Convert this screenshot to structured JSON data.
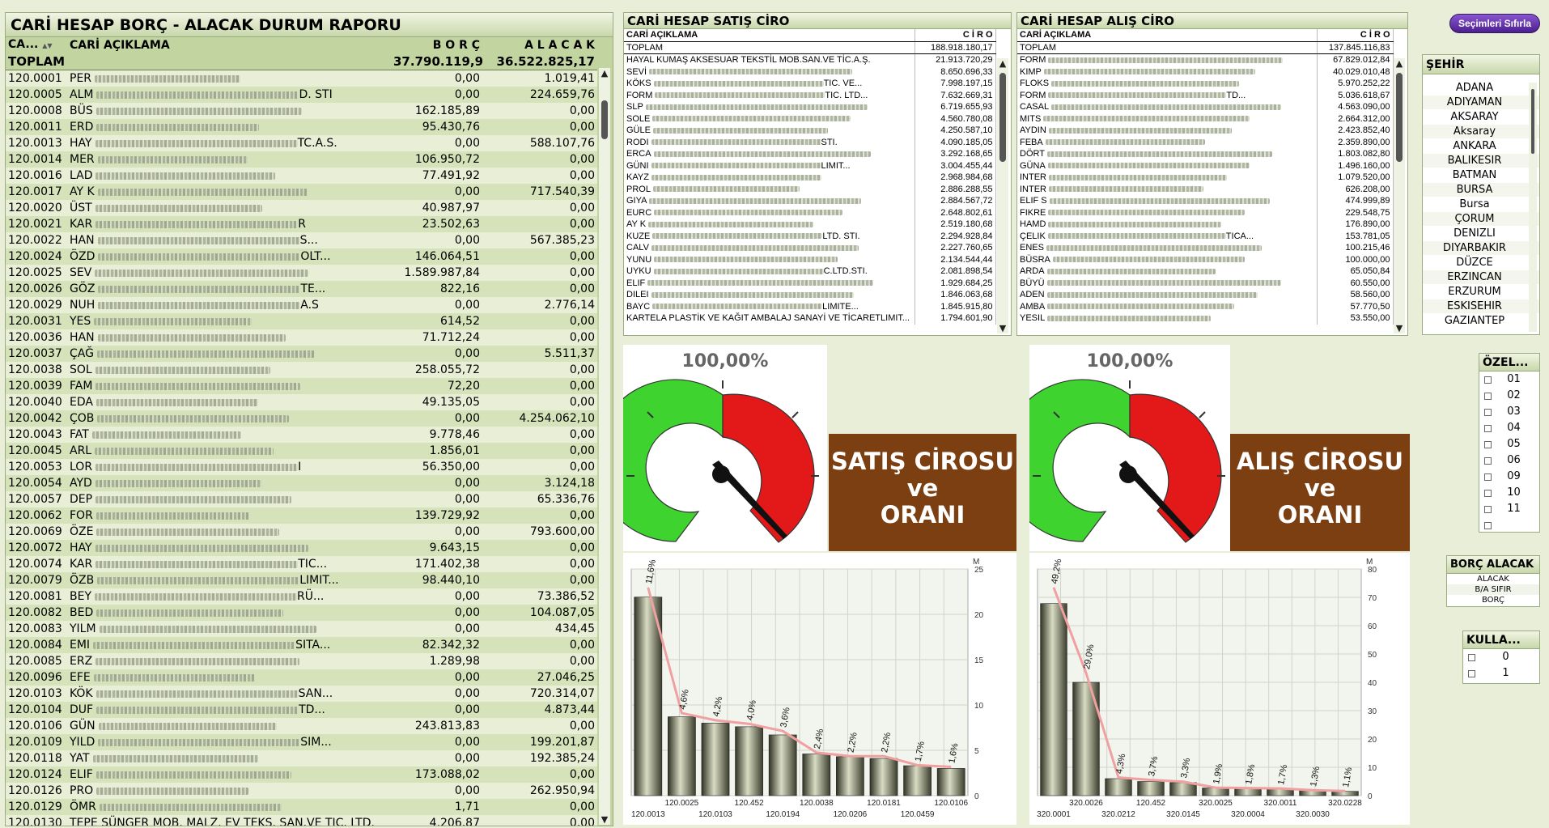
{
  "borc_report": {
    "title": "CARİ HESAP BORÇ - ALACAK DURUM RAPORU",
    "headers": {
      "code": "CA...",
      "sort_arrow": "▲▼",
      "desc": "CARİ AÇIKLAMA",
      "borc": "B O R Ç",
      "alacak": "A L A C A K"
    },
    "total": {
      "label": "TOPLAM",
      "borc": "37.790.119,94",
      "alacak": "36.522.825,17"
    },
    "rows": [
      {
        "code": "120.0001",
        "name": "PER",
        "tail": "",
        "borc": "0,00",
        "alacak": "1.019,41"
      },
      {
        "code": "120.0005",
        "name": "ALM",
        "tail": "D. STI",
        "borc": "0,00",
        "alacak": "224.659,76"
      },
      {
        "code": "120.0008",
        "name": "BÜS",
        "tail": "",
        "borc": "162.185,89",
        "alacak": "0,00"
      },
      {
        "code": "120.0011",
        "name": "ERD",
        "tail": "",
        "borc": "95.430,76",
        "alacak": "0,00"
      },
      {
        "code": "120.0013",
        "name": "HAY",
        "tail": "TC.A.S.",
        "borc": "0,00",
        "alacak": "588.107,76"
      },
      {
        "code": "120.0014",
        "name": "MER",
        "tail": "",
        "borc": "106.950,72",
        "alacak": "0,00"
      },
      {
        "code": "120.0016",
        "name": "LAD",
        "tail": "",
        "borc": "77.491,92",
        "alacak": "0,00"
      },
      {
        "code": "120.0017",
        "name": "AY K",
        "tail": "",
        "borc": "0,00",
        "alacak": "717.540,39"
      },
      {
        "code": "120.0020",
        "name": "ÜST",
        "tail": "",
        "borc": "40.987,97",
        "alacak": "0,00"
      },
      {
        "code": "120.0021",
        "name": "KAR",
        "tail": "R",
        "borc": "23.502,63",
        "alacak": "0,00"
      },
      {
        "code": "120.0022",
        "name": "HAN",
        "tail": "S...",
        "borc": "0,00",
        "alacak": "567.385,23"
      },
      {
        "code": "120.0024",
        "name": "ÖZD",
        "tail": "OLT...",
        "borc": "146.064,51",
        "alacak": "0,00"
      },
      {
        "code": "120.0025",
        "name": "SEV",
        "tail": "",
        "borc": "1.589.987,84",
        "alacak": "0,00"
      },
      {
        "code": "120.0026",
        "name": "GÖZ",
        "tail": "TE...",
        "borc": "822,16",
        "alacak": "0,00"
      },
      {
        "code": "120.0029",
        "name": "NUH",
        "tail": "A.S",
        "borc": "0,00",
        "alacak": "2.776,14"
      },
      {
        "code": "120.0031",
        "name": "YES",
        "tail": "",
        "borc": "614,52",
        "alacak": "0,00"
      },
      {
        "code": "120.0036",
        "name": "HAN",
        "tail": "",
        "borc": "71.712,24",
        "alacak": "0,00"
      },
      {
        "code": "120.0037",
        "name": "ÇAĞ",
        "tail": "",
        "borc": "0,00",
        "alacak": "5.511,37"
      },
      {
        "code": "120.0038",
        "name": "SOL",
        "tail": "",
        "borc": "258.055,72",
        "alacak": "0,00"
      },
      {
        "code": "120.0039",
        "name": "FAM",
        "tail": "",
        "borc": "72,20",
        "alacak": "0,00"
      },
      {
        "code": "120.0040",
        "name": "EDA",
        "tail": "",
        "borc": "49.135,05",
        "alacak": "0,00"
      },
      {
        "code": "120.0042",
        "name": "ÇOB",
        "tail": "",
        "borc": "0,00",
        "alacak": "4.254.062,10"
      },
      {
        "code": "120.0043",
        "name": "FAT",
        "tail": "",
        "borc": "9.778,46",
        "alacak": "0,00"
      },
      {
        "code": "120.0045",
        "name": "ARL",
        "tail": "",
        "borc": "1.856,01",
        "alacak": "0,00"
      },
      {
        "code": "120.0053",
        "name": "LOR",
        "tail": "I",
        "borc": "56.350,00",
        "alacak": "0,00"
      },
      {
        "code": "120.0054",
        "name": "AYD",
        "tail": "",
        "borc": "0,00",
        "alacak": "3.124,18"
      },
      {
        "code": "120.0057",
        "name": "DEP",
        "tail": "",
        "borc": "0,00",
        "alacak": "65.336,76"
      },
      {
        "code": "120.0062",
        "name": "FOR",
        "tail": "",
        "borc": "139.729,92",
        "alacak": "0,00"
      },
      {
        "code": "120.0069",
        "name": "ÖZE",
        "tail": "",
        "borc": "0,00",
        "alacak": "793.600,00"
      },
      {
        "code": "120.0072",
        "name": "HAY",
        "tail": "",
        "borc": "9.643,15",
        "alacak": "0,00"
      },
      {
        "code": "120.0074",
        "name": "KAR",
        "tail": "TIC...",
        "borc": "171.402,38",
        "alacak": "0,00"
      },
      {
        "code": "120.0079",
        "name": "ÖZB",
        "tail": "LIMIT...",
        "borc": "98.440,10",
        "alacak": "0,00"
      },
      {
        "code": "120.0081",
        "name": "BEY",
        "tail": "RÜ...",
        "borc": "0,00",
        "alacak": "73.386,52"
      },
      {
        "code": "120.0082",
        "name": "BED",
        "tail": "",
        "borc": "0,00",
        "alacak": "104.087,05"
      },
      {
        "code": "120.0083",
        "name": "YILM",
        "tail": "",
        "borc": "0,00",
        "alacak": "434,45"
      },
      {
        "code": "120.0084",
        "name": "EMI",
        "tail": "SITA...",
        "borc": "82.342,32",
        "alacak": "0,00"
      },
      {
        "code": "120.0085",
        "name": "ERZ",
        "tail": "",
        "borc": "1.289,98",
        "alacak": "0,00"
      },
      {
        "code": "120.0096",
        "name": "EFE",
        "tail": "",
        "borc": "0,00",
        "alacak": "27.046,25"
      },
      {
        "code": "120.0103",
        "name": "KÖK",
        "tail": "SAN...",
        "borc": "0,00",
        "alacak": "720.314,07"
      },
      {
        "code": "120.0104",
        "name": "DUF",
        "tail": "TD...",
        "borc": "0,00",
        "alacak": "4.873,44"
      },
      {
        "code": "120.0106",
        "name": "GÜN",
        "tail": "",
        "borc": "243.813,83",
        "alacak": "0,00"
      },
      {
        "code": "120.0109",
        "name": "YILD",
        "tail": "SIM...",
        "borc": "0,00",
        "alacak": "199.201,87"
      },
      {
        "code": "120.0118",
        "name": "YAT",
        "tail": "",
        "borc": "0,00",
        "alacak": "192.385,24"
      },
      {
        "code": "120.0124",
        "name": "ELIF",
        "tail": "",
        "borc": "173.088,02",
        "alacak": "0,00"
      },
      {
        "code": "120.0126",
        "name": "PRO",
        "tail": "",
        "borc": "0,00",
        "alacak": "262.950,94"
      },
      {
        "code": "120.0129",
        "name": "ÖMR",
        "tail": "",
        "borc": "1,71",
        "alacak": "0,00"
      },
      {
        "code": "120.0130",
        "name": "TEPE SÜNGER MOB. MALZ. EV TEKS. SAN.VE TIC. LTD.",
        "tail": "",
        "borc": "4.206,87",
        "alacak": "0,00"
      }
    ]
  },
  "satis_ciro": {
    "title": "CARİ HESAP SATIŞ CİRO",
    "col_desc": "CARİ AÇIKLAMA",
    "col_ciro": "C İ R O",
    "total": {
      "label": "TOPLAM",
      "value": "188.918.180,17"
    },
    "rows": [
      {
        "name": "HAYAL KUMAŞ AKSESUAR TEKSTİL MOB.SAN.VE TİC.A.Ş.",
        "tail": "",
        "value": "21.913.720,29"
      },
      {
        "name": "SEVİ",
        "tail": "",
        "value": "8.650.696,33"
      },
      {
        "name": "KÖKS",
        "tail": "TIC. VE...",
        "value": "7.998.197,15"
      },
      {
        "name": "FORM",
        "tail": "TIC. LTD...",
        "value": "7.632.669,31"
      },
      {
        "name": "SLP",
        "tail": "",
        "value": "6.719.655,93"
      },
      {
        "name": "SOLE",
        "tail": "",
        "value": "4.560.780,08"
      },
      {
        "name": "GÜLE",
        "tail": "",
        "value": "4.250.587,10"
      },
      {
        "name": "RODI",
        "tail": "STI.",
        "value": "4.090.185,05"
      },
      {
        "name": "ERCA",
        "tail": "",
        "value": "3.292.168,65"
      },
      {
        "name": "GÜNI",
        "tail": "LIMIT...",
        "value": "3.004.455,44"
      },
      {
        "name": "KAYZ",
        "tail": "",
        "value": "2.968.984,68"
      },
      {
        "name": "PROL",
        "tail": "",
        "value": "2.886.288,55"
      },
      {
        "name": "GIYA",
        "tail": "",
        "value": "2.884.567,72"
      },
      {
        "name": "EURC",
        "tail": "",
        "value": "2.648.802,61"
      },
      {
        "name": "AY K",
        "tail": "",
        "value": "2.519.180,68"
      },
      {
        "name": "KUZE",
        "tail": "LTD. STI.",
        "value": "2.294.928,84"
      },
      {
        "name": "CALV",
        "tail": "",
        "value": "2.227.760,65"
      },
      {
        "name": "YUNU",
        "tail": "",
        "value": "2.134.544,44"
      },
      {
        "name": "UYKU",
        "tail": "C.LTD.STI.",
        "value": "2.081.898,54"
      },
      {
        "name": "ELIF",
        "tail": "",
        "value": "1.929.684,25"
      },
      {
        "name": "DILEI",
        "tail": "",
        "value": "1.846.063,68"
      },
      {
        "name": "BAYC",
        "tail": "LIMITE...",
        "value": "1.845.915,80"
      },
      {
        "name": "KARTELA PLASTİK VE KAĞIT AMBALAJ SANAYİ VE TİCARET",
        "tail": "LIMIT...",
        "value": "1.794.601,90"
      }
    ]
  },
  "alis_ciro": {
    "title": "CARİ HESAP ALIŞ CİRO",
    "col_desc": "CARİ AÇIKLAMA",
    "col_ciro": "C İ R O",
    "total": {
      "label": "TOPLAM",
      "value": "137.845.116,83"
    },
    "rows": [
      {
        "name": "FORM",
        "tail": "",
        "value": "67.829.012,84"
      },
      {
        "name": "KIMP",
        "tail": "",
        "value": "40.029.010,48"
      },
      {
        "name": "FLOKS",
        "tail": "",
        "value": "5.970.252,22"
      },
      {
        "name": "FORM",
        "tail": "TD...",
        "value": "5.036.618,67"
      },
      {
        "name": "CASAL",
        "tail": "",
        "value": "4.563.090,00"
      },
      {
        "name": "MITS",
        "tail": "",
        "value": "2.664.312,00"
      },
      {
        "name": "AYDIN",
        "tail": "",
        "value": "2.423.852,40"
      },
      {
        "name": "FEBA",
        "tail": "",
        "value": "2.359.890,00"
      },
      {
        "name": "DÖRT",
        "tail": "",
        "value": "1.803.082,80"
      },
      {
        "name": "GÜNA",
        "tail": "",
        "value": "1.496.160,00"
      },
      {
        "name": "INTER",
        "tail": "",
        "value": "1.079.520,00"
      },
      {
        "name": "INTER",
        "tail": "",
        "value": "626.208,00"
      },
      {
        "name": "ELIF S",
        "tail": "",
        "value": "474.999,89"
      },
      {
        "name": "FIKRE",
        "tail": "",
        "value": "229.548,75"
      },
      {
        "name": "HAMD",
        "tail": "",
        "value": "176.890,00"
      },
      {
        "name": "ÇELIK",
        "tail": "TICA...",
        "value": "153.781,05"
      },
      {
        "name": "ENES",
        "tail": "",
        "value": "100.215,46"
      },
      {
        "name": "BÜSRA",
        "tail": "",
        "value": "100.000,00"
      },
      {
        "name": "ARDA",
        "tail": "",
        "value": "65.050,84"
      },
      {
        "name": "BÜYÜ",
        "tail": "",
        "value": "60.550,00"
      },
      {
        "name": "ADEN",
        "tail": "",
        "value": "58.560,00"
      },
      {
        "name": "AMBA",
        "tail": "",
        "value": "57.770,50"
      },
      {
        "name": "YESIL",
        "tail": "",
        "value": "53.550,00"
      }
    ]
  },
  "gauge_satis": {
    "pct": "100,00%",
    "title_lines": [
      "SATIŞ CİROSU",
      "ve",
      "ORANI"
    ]
  },
  "gauge_alis": {
    "pct": "100,00%",
    "title_lines": [
      "ALIŞ CİROSU",
      "ve",
      "ORANI"
    ]
  },
  "reset_button": "Seçimleri Sıfırla",
  "sehir": {
    "title": "ŞEHİR",
    "items": [
      "ADANA",
      "ADIYAMAN",
      "AKSARAY",
      "Aksaray",
      "ANKARA",
      "BALIKESIR",
      "BATMAN",
      "BURSA",
      "Bursa",
      "ÇORUM",
      "DENIZLI",
      "DIYARBAKIR",
      "DÜZCE",
      "ERZINCAN",
      "ERZURUM",
      "ESKISEHIR",
      "GAZIANTEP"
    ]
  },
  "ozel": {
    "title": "ÖZEL...",
    "items": [
      "01",
      "02",
      "03",
      "04",
      "05",
      "06",
      "09",
      "10",
      "11",
      ""
    ]
  },
  "borc_alacak": {
    "title": "BORÇ ALACAK",
    "items": [
      "ALACAK",
      "B/A SIFIR",
      "BORÇ"
    ]
  },
  "kulla": {
    "title": "KULLA...",
    "items": [
      "0",
      "1"
    ]
  },
  "colors": {
    "panel_bg": "#c2d4a0",
    "row_light": "#e8efd6",
    "row_dark": "#d6e3ba",
    "gauge_green": "#3fd32f",
    "gauge_red": "#e31818",
    "brown": "#7b3f12",
    "line": "#f0a0a0"
  },
  "chart_data": [
    {
      "type": "bar",
      "unit": "M",
      "x_tick_labels_top": [
        "120.0025",
        "120.452",
        "120.0038",
        "120.0181",
        "120.0106"
      ],
      "x_tick_labels_bottom": [
        "120.0013",
        "120.0103",
        "120.0194",
        "120.0206",
        "120.0459"
      ],
      "values": [
        21.9,
        8.7,
        8.0,
        7.6,
        6.7,
        4.6,
        4.3,
        4.1,
        3.3,
        3.0
      ],
      "pct_labels": [
        "11,6%",
        "4,6%",
        "4,2%",
        "4,0%",
        "3,6%",
        "2,4%",
        "2,2%",
        "2,2%",
        "1,7%",
        "1,6%"
      ],
      "pct": [
        11.6,
        4.6,
        4.2,
        4.0,
        3.6,
        2.4,
        2.2,
        2.2,
        1.7,
        1.6
      ],
      "ylim": [
        0,
        25
      ],
      "yticks": [
        0,
        5,
        10,
        15,
        20,
        25
      ]
    },
    {
      "type": "bar",
      "unit": "M",
      "x_tick_labels_top": [
        "320.0026",
        "120.452",
        "320.0025",
        "320.0011",
        "320.0228"
      ],
      "x_tick_labels_bottom": [
        "320.0001",
        "320.0212",
        "320.0145",
        "320.0004",
        "320.0030"
      ],
      "values": [
        67.8,
        40.0,
        6.0,
        5.0,
        4.6,
        2.7,
        2.4,
        2.4,
        1.8,
        1.5
      ],
      "pct_labels": [
        "49,2%",
        "29,0%",
        "4,3%",
        "3,7%",
        "3,3%",
        "1,9%",
        "1,8%",
        "1,7%",
        "1,3%",
        "1,1%"
      ],
      "pct": [
        49.2,
        29.0,
        4.3,
        3.7,
        3.3,
        1.9,
        1.8,
        1.7,
        1.3,
        1.1
      ],
      "ylim": [
        0,
        80
      ],
      "yticks": [
        0,
        10,
        20,
        30,
        40,
        50,
        60,
        70,
        80
      ]
    }
  ]
}
